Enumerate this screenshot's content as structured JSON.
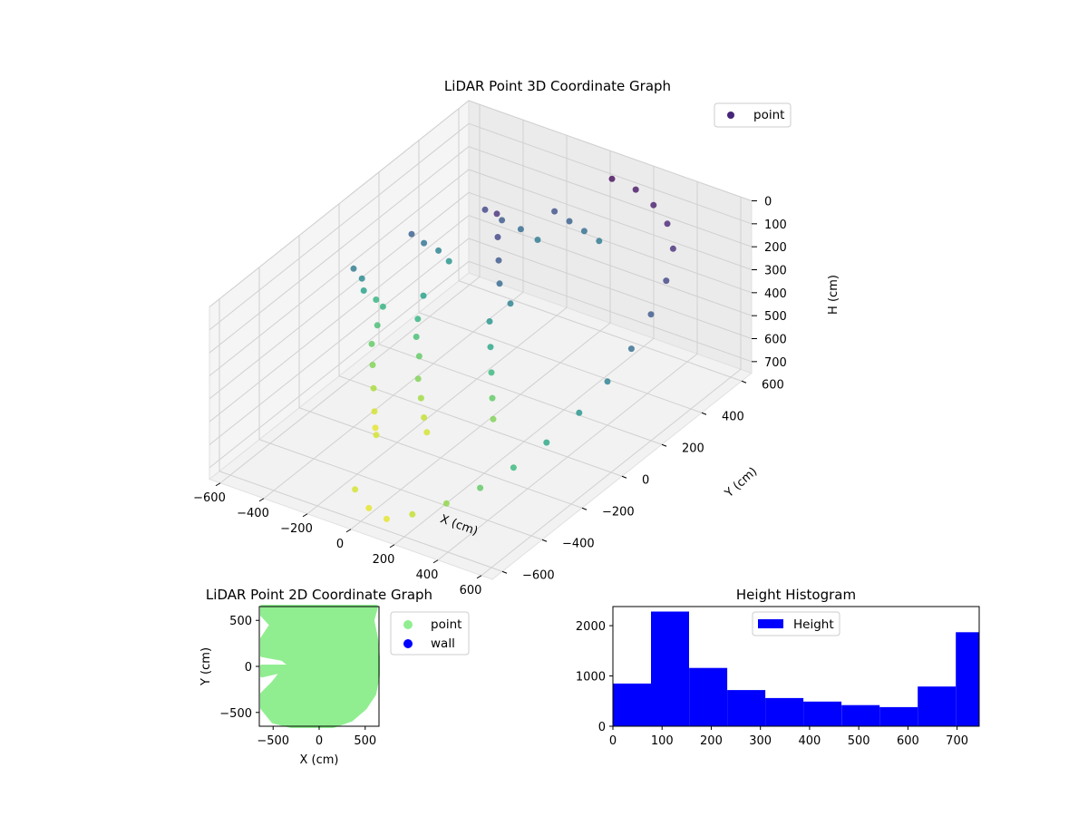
{
  "chart_data": [
    {
      "type": "scatter",
      "projection": "3d",
      "title": "LiDAR Point 3D Coordinate Graph",
      "xlabel": "X (cm)",
      "ylabel": "Y (cm)",
      "zlabel": "H (cm)",
      "x_ticks": [
        "−600",
        "−400",
        "−200",
        "0",
        "200",
        "400",
        "600"
      ],
      "y_ticks": [
        "−600",
        "−400",
        "−200",
        "0",
        "200",
        "400",
        "600"
      ],
      "z_ticks": [
        "0",
        "100",
        "200",
        "300",
        "400",
        "500",
        "600",
        "700"
      ],
      "xlim": [
        -650,
        650
      ],
      "ylim": [
        -650,
        650
      ],
      "zlim": [
        0,
        750
      ],
      "z_inverted": true,
      "colormap": "viridis",
      "legend": {
        "placement": "top-right",
        "entries": [
          {
            "label": "point",
            "color": "#46257a"
          }
        ]
      },
      "series": [
        {
          "name": "point",
          "description_of_points_only": "",
          "points": [
            [
              -620,
              40,
              300
            ],
            [
              -600,
              60,
              350
            ],
            [
              -610,
              80,
              420
            ],
            [
              -590,
              120,
              480
            ],
            [
              -500,
              200,
              220
            ],
            [
              -480,
              240,
              280
            ],
            [
              -450,
              280,
              330
            ],
            [
              -420,
              300,
              380
            ],
            [
              -400,
              150,
              420
            ],
            [
              -380,
              100,
              480
            ],
            [
              -350,
              60,
              520
            ],
            [
              -300,
              20,
              560
            ],
            [
              -250,
              -40,
              600
            ],
            [
              -200,
              -80,
              640
            ],
            [
              -150,
              -120,
              680
            ],
            [
              -100,
              -160,
              700
            ],
            [
              -300,
              350,
              150
            ],
            [
              -250,
              380,
              200
            ],
            [
              -200,
              420,
              250
            ],
            [
              -150,
              450,
              300
            ],
            [
              -100,
              480,
              180
            ],
            [
              -50,
              500,
              220
            ],
            [
              0,
              520,
              260
            ],
            [
              50,
              540,
              300
            ],
            [
              -200,
              300,
              100
            ],
            [
              -150,
              250,
              150
            ],
            [
              -100,
              200,
              200
            ],
            [
              -50,
              150,
              250
            ],
            [
              -400,
              -100,
              650
            ],
            [
              -350,
              -150,
              700
            ],
            [
              -300,
              -200,
              720
            ],
            [
              -250,
              -250,
              700
            ],
            [
              -450,
              -50,
              600
            ],
            [
              -500,
              0,
              560
            ],
            [
              -520,
              50,
              520
            ],
            [
              -540,
              100,
              480
            ],
            [
              100,
              550,
              20
            ],
            [
              200,
              560,
              40
            ],
            [
              300,
              540,
              60
            ],
            [
              400,
              500,
              80
            ],
            [
              500,
              420,
              100
            ],
            [
              560,
              320,
              150
            ],
            [
              600,
              200,
              200
            ],
            [
              620,
              80,
              260
            ],
            [
              620,
              -40,
              320
            ],
            [
              600,
              -160,
              380
            ],
            [
              560,
              -280,
              440
            ],
            [
              500,
              -380,
              500
            ],
            [
              420,
              -460,
              560
            ],
            [
              320,
              -520,
              620
            ],
            [
              200,
              -560,
              680
            ],
            [
              100,
              -580,
              720
            ],
            [
              0,
              -560,
              720
            ],
            [
              -100,
              -520,
              700
            ],
            [
              150,
              -100,
              600
            ],
            [
              100,
              -50,
              560
            ],
            [
              50,
              0,
              500
            ],
            [
              0,
              50,
              440
            ],
            [
              -50,
              100,
              380
            ],
            [
              0,
              150,
              320
            ]
          ]
        }
      ]
    },
    {
      "type": "scatter",
      "title": "LiDAR Point 2D Coordinate Graph",
      "xlabel": "X (cm)",
      "ylabel": "Y (cm)",
      "x_ticks": [
        "−500",
        "0",
        "500"
      ],
      "y_ticks": [
        "500",
        "0",
        "−500"
      ],
      "xlim": [
        -650,
        650
      ],
      "ylim": [
        -650,
        650
      ],
      "legend": {
        "placement": "outside-right",
        "entries": [
          {
            "label": "point",
            "color": "#90ee90"
          },
          {
            "label": "wall",
            "color": "#0000ff"
          }
        ]
      },
      "series": [
        {
          "name": "point",
          "color": "#90ee90",
          "footprint_outline": [
            [
              -620,
              650
            ],
            [
              620,
              650
            ],
            [
              580,
              500
            ],
            [
              620,
              300
            ],
            [
              640,
              100
            ],
            [
              640,
              -100
            ],
            [
              600,
              -300
            ],
            [
              500,
              -450
            ],
            [
              350,
              -580
            ],
            [
              150,
              -650
            ],
            [
              -300,
              -650
            ],
            [
              -500,
              -600
            ],
            [
              -620,
              -450
            ],
            [
              -620,
              -300
            ],
            [
              -500,
              -180
            ],
            [
              -400,
              -50
            ],
            [
              -620,
              -100
            ],
            [
              -620,
              0
            ],
            [
              -300,
              0
            ],
            [
              -400,
              80
            ],
            [
              -620,
              120
            ],
            [
              -620,
              300
            ],
            [
              -520,
              450
            ],
            [
              -620,
              560
            ]
          ]
        },
        {
          "name": "wall",
          "color": "#0000ff",
          "points": []
        }
      ]
    },
    {
      "type": "bar",
      "subtype": "histogram",
      "title": "Height Histogram",
      "xlabel": "",
      "ylabel": "",
      "x_ticks": [
        "0",
        "100",
        "200",
        "300",
        "400",
        "500",
        "600",
        "700"
      ],
      "y_ticks": [
        "0",
        "1000",
        "2000"
      ],
      "xlim": [
        0,
        745
      ],
      "ylim": [
        0,
        2380
      ],
      "bar_color": "#0000ff",
      "legend": {
        "placement": "top-center",
        "entries": [
          {
            "label": "Height",
            "color": "#0000ff"
          }
        ]
      },
      "bin_edges": [
        0,
        77.5,
        155,
        232.5,
        310,
        387.5,
        465,
        542.5,
        620,
        697.5,
        745
      ],
      "series": [
        {
          "name": "Height",
          "values": [
            850,
            2280,
            1160,
            720,
            560,
            490,
            420,
            380,
            790,
            1870
          ]
        }
      ]
    }
  ]
}
